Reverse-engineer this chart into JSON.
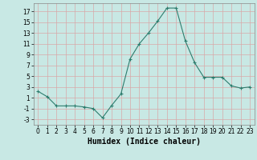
{
  "x": [
    0,
    1,
    2,
    3,
    4,
    5,
    6,
    7,
    8,
    9,
    10,
    11,
    12,
    13,
    14,
    15,
    16,
    17,
    18,
    19,
    20,
    21,
    22,
    23
  ],
  "y": [
    2.2,
    1.2,
    -0.5,
    -0.5,
    -0.5,
    -0.7,
    -1.0,
    -2.7,
    -0.4,
    1.7,
    8.2,
    11.0,
    13.0,
    15.2,
    17.6,
    17.6,
    11.5,
    7.5,
    4.8,
    4.8,
    4.8,
    3.2,
    2.8,
    3.0
  ],
  "line_color": "#2d7d6e",
  "marker": "+",
  "marker_size": 3,
  "marker_lw": 0.8,
  "bg_color": "#c8e8e4",
  "grid_color": "#d8a8a8",
  "xlabel": "Humidex (Indice chaleur)",
  "xlim": [
    -0.5,
    23.5
  ],
  "ylim": [
    -4,
    18.5
  ],
  "yticks": [
    -3,
    -1,
    1,
    3,
    5,
    7,
    9,
    11,
    13,
    15,
    17
  ],
  "xticks": [
    0,
    1,
    2,
    3,
    4,
    5,
    6,
    7,
    8,
    9,
    10,
    11,
    12,
    13,
    14,
    15,
    16,
    17,
    18,
    19,
    20,
    21,
    22,
    23
  ],
  "axis_fontsize": 5.5,
  "label_fontsize": 7,
  "line_width": 0.8
}
